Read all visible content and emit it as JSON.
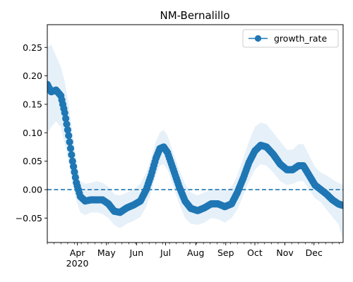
{
  "chart_data": {
    "type": "line",
    "title": "NM-Bernalillo",
    "xlabel": "",
    "ylabel": "",
    "x_range": [
      "2020-03-01",
      "2020-12-31"
    ],
    "ylim": [
      -0.093,
      0.29
    ],
    "grid": false,
    "legend_position": "upper right",
    "y_ticks": [
      -0.05,
      0.0,
      0.05,
      0.1,
      0.15,
      0.2,
      0.25
    ],
    "y_tick_labels": [
      "−0.05",
      "0.00",
      "0.05",
      "0.10",
      "0.15",
      "0.20",
      "0.25"
    ],
    "x_ticks": [
      {
        "date": "2020-04-01",
        "label": "Apr",
        "sublabel": "2020"
      },
      {
        "date": "2020-05-01",
        "label": "May"
      },
      {
        "date": "2020-06-01",
        "label": "Jun"
      },
      {
        "date": "2020-07-01",
        "label": "Jul"
      },
      {
        "date": "2020-08-01",
        "label": "Aug"
      },
      {
        "date": "2020-09-01",
        "label": "Sep"
      },
      {
        "date": "2020-10-01",
        "label": "Oct"
      },
      {
        "date": "2020-11-01",
        "label": "Nov"
      },
      {
        "date": "2020-12-01",
        "label": "Dec"
      }
    ],
    "reference_line": {
      "y": 0.0,
      "style": "dashed"
    },
    "series": [
      {
        "name": "growth_rate",
        "color": "#1f77b4",
        "band_color": "#deebf7",
        "points": [
          {
            "x": "2020-03-01",
            "y": 0.185,
            "lo": 0.1,
            "hi": 0.25
          },
          {
            "x": "2020-03-05",
            "y": 0.172,
            "lo": 0.11,
            "hi": 0.255
          },
          {
            "x": "2020-03-10",
            "y": 0.175,
            "lo": 0.12,
            "hi": 0.235
          },
          {
            "x": "2020-03-15",
            "y": 0.165,
            "lo": 0.11,
            "hi": 0.215
          },
          {
            "x": "2020-03-19",
            "y": 0.135,
            "lo": 0.08,
            "hi": 0.19
          },
          {
            "x": "2020-03-23",
            "y": 0.095,
            "lo": 0.05,
            "hi": 0.15
          },
          {
            "x": "2020-03-27",
            "y": 0.05,
            "lo": 0.01,
            "hi": 0.1
          },
          {
            "x": "2020-03-31",
            "y": 0.012,
            "lo": -0.02,
            "hi": 0.05
          },
          {
            "x": "2020-04-04",
            "y": -0.012,
            "lo": -0.04,
            "hi": 0.015
          },
          {
            "x": "2020-04-09",
            "y": -0.02,
            "lo": -0.045,
            "hi": 0.01
          },
          {
            "x": "2020-04-15",
            "y": -0.018,
            "lo": -0.04,
            "hi": 0.012
          },
          {
            "x": "2020-04-21",
            "y": -0.018,
            "lo": -0.04,
            "hi": 0.015
          },
          {
            "x": "2020-04-27",
            "y": -0.018,
            "lo": -0.043,
            "hi": 0.012
          },
          {
            "x": "2020-05-03",
            "y": -0.025,
            "lo": -0.05,
            "hi": 0.005
          },
          {
            "x": "2020-05-09",
            "y": -0.038,
            "lo": -0.062,
            "hi": -0.008
          },
          {
            "x": "2020-05-15",
            "y": -0.04,
            "lo": -0.068,
            "hi": -0.01
          },
          {
            "x": "2020-05-22",
            "y": -0.032,
            "lo": -0.06,
            "hi": -0.005
          },
          {
            "x": "2020-05-29",
            "y": -0.027,
            "lo": -0.055,
            "hi": 0.0
          },
          {
            "x": "2020-06-05",
            "y": -0.02,
            "lo": -0.048,
            "hi": 0.01
          },
          {
            "x": "2020-06-11",
            "y": 0.0,
            "lo": -0.03,
            "hi": 0.03
          },
          {
            "x": "2020-06-16",
            "y": 0.025,
            "lo": -0.005,
            "hi": 0.055
          },
          {
            "x": "2020-06-21",
            "y": 0.055,
            "lo": 0.025,
            "hi": 0.085
          },
          {
            "x": "2020-06-25",
            "y": 0.072,
            "lo": 0.042,
            "hi": 0.1
          },
          {
            "x": "2020-06-29",
            "y": 0.075,
            "lo": 0.045,
            "hi": 0.105
          },
          {
            "x": "2020-07-03",
            "y": 0.065,
            "lo": 0.035,
            "hi": 0.095
          },
          {
            "x": "2020-07-09",
            "y": 0.035,
            "lo": 0.005,
            "hi": 0.065
          },
          {
            "x": "2020-07-15",
            "y": 0.005,
            "lo": -0.025,
            "hi": 0.035
          },
          {
            "x": "2020-07-21",
            "y": -0.02,
            "lo": -0.05,
            "hi": 0.01
          },
          {
            "x": "2020-07-27",
            "y": -0.033,
            "lo": -0.06,
            "hi": -0.005
          },
          {
            "x": "2020-08-03",
            "y": -0.037,
            "lo": -0.062,
            "hi": -0.01
          },
          {
            "x": "2020-08-10",
            "y": -0.032,
            "lo": -0.058,
            "hi": -0.005
          },
          {
            "x": "2020-08-17",
            "y": -0.025,
            "lo": -0.05,
            "hi": 0.0
          },
          {
            "x": "2020-08-24",
            "y": -0.025,
            "lo": -0.052,
            "hi": 0.0
          },
          {
            "x": "2020-08-31",
            "y": -0.03,
            "lo": -0.058,
            "hi": -0.002
          },
          {
            "x": "2020-09-07",
            "y": -0.025,
            "lo": -0.05,
            "hi": 0.005
          },
          {
            "x": "2020-09-13",
            "y": -0.005,
            "lo": -0.035,
            "hi": 0.025
          },
          {
            "x": "2020-09-19",
            "y": 0.02,
            "lo": -0.01,
            "hi": 0.055
          },
          {
            "x": "2020-09-25",
            "y": 0.048,
            "lo": 0.015,
            "hi": 0.085
          },
          {
            "x": "2020-10-01",
            "y": 0.068,
            "lo": 0.035,
            "hi": 0.11
          },
          {
            "x": "2020-10-07",
            "y": 0.078,
            "lo": 0.045,
            "hi": 0.118
          },
          {
            "x": "2020-10-13",
            "y": 0.075,
            "lo": 0.042,
            "hi": 0.115
          },
          {
            "x": "2020-10-20",
            "y": 0.062,
            "lo": 0.03,
            "hi": 0.1
          },
          {
            "x": "2020-10-27",
            "y": 0.045,
            "lo": 0.015,
            "hi": 0.085
          },
          {
            "x": "2020-11-03",
            "y": 0.035,
            "lo": 0.008,
            "hi": 0.07
          },
          {
            "x": "2020-11-09",
            "y": 0.035,
            "lo": 0.01,
            "hi": 0.07
          },
          {
            "x": "2020-11-15",
            "y": 0.042,
            "lo": 0.015,
            "hi": 0.08
          },
          {
            "x": "2020-11-20",
            "y": 0.042,
            "lo": 0.015,
            "hi": 0.08
          },
          {
            "x": "2020-11-26",
            "y": 0.025,
            "lo": 0.0,
            "hi": 0.06
          },
          {
            "x": "2020-12-02",
            "y": 0.008,
            "lo": -0.015,
            "hi": 0.04
          },
          {
            "x": "2020-12-08",
            "y": 0.0,
            "lo": -0.022,
            "hi": 0.03
          },
          {
            "x": "2020-12-14",
            "y": -0.008,
            "lo": -0.035,
            "hi": 0.025
          },
          {
            "x": "2020-12-20",
            "y": -0.018,
            "lo": -0.048,
            "hi": 0.018
          },
          {
            "x": "2020-12-26",
            "y": -0.025,
            "lo": -0.06,
            "hi": 0.012
          },
          {
            "x": "2020-12-31",
            "y": -0.028,
            "lo": -0.088,
            "hi": 0.008
          }
        ]
      }
    ]
  }
}
